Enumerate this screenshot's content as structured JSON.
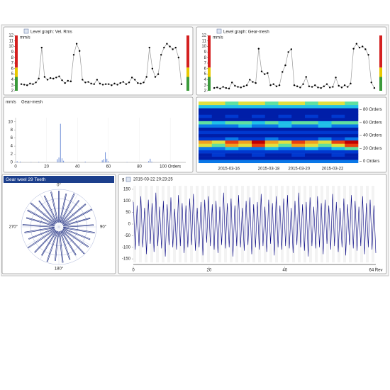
{
  "chart_data": [
    {
      "type": "line",
      "title": "Level graph: Vel. Rms",
      "y_label": "mm/s",
      "color": "#999999",
      "marker_color": "#000000",
      "values": [
        3.2,
        3.1,
        3.0,
        3.3,
        3.2,
        3.5,
        4.2,
        9.8,
        4.5,
        4.0,
        4.3,
        4.2,
        4.4,
        4.6,
        3.9,
        3.4,
        3.8,
        3.7,
        8.5,
        10.5,
        9.2,
        4.0,
        3.5,
        3.6,
        3.3,
        3.2,
        4.0,
        3.3,
        3.1,
        3.2,
        3.2,
        3.0,
        3.3,
        3.1,
        3.4,
        3.6,
        3.2,
        3.5,
        4.4,
        4.0,
        3.4,
        3.3,
        3.5,
        4.5,
        9.8,
        6.0,
        4.5,
        5.0,
        8.5,
        9.8,
        10.5,
        10.0,
        9.5,
        9.8,
        8.0,
        3.2
      ],
      "ylim": [
        2,
        12
      ],
      "yticks": [
        2,
        3,
        4,
        5,
        6,
        7,
        8,
        9,
        10,
        11,
        12
      ],
      "alarm_bands": [
        {
          "from": 2,
          "to": 4.5,
          "color": "#3a9a3a"
        },
        {
          "from": 4.5,
          "to": 6.2,
          "color": "#e8c800"
        },
        {
          "from": 6.2,
          "to": 12,
          "color": "#d42020"
        }
      ]
    },
    {
      "type": "line",
      "title": "Level graph: Gear-mesh",
      "y_label": "mm/s",
      "color": "#999999",
      "marker_color": "#000000",
      "values": [
        2.5,
        2.6,
        2.4,
        2.7,
        2.5,
        2.4,
        3.5,
        2.9,
        2.7,
        2.6,
        2.8,
        3.0,
        4.0,
        3.6,
        3.4,
        9.6,
        5.5,
        5.0,
        5.2,
        3.0,
        3.2,
        2.8,
        3.0,
        5.4,
        6.6,
        9.0,
        9.5,
        3.0,
        2.8,
        2.6,
        3.2,
        4.5,
        2.8,
        2.7,
        3.0,
        2.6,
        2.5,
        2.8,
        3.2,
        2.6,
        2.7,
        4.4,
        2.9,
        2.6,
        3.0,
        2.7,
        3.3,
        9.6,
        10.5,
        9.8,
        10.0,
        9.5,
        8.5,
        3.5,
        2.5
      ],
      "ylim": [
        2,
        12
      ],
      "yticks": [
        2,
        3,
        4,
        5,
        6,
        7,
        8,
        9,
        10,
        11,
        12
      ],
      "alarm_bands": [
        {
          "from": 2,
          "to": 4.5,
          "color": "#3a9a3a"
        },
        {
          "from": 4.5,
          "to": 6.2,
          "color": "#e8c800"
        },
        {
          "from": 6.2,
          "to": 12,
          "color": "#d42020"
        }
      ]
    },
    {
      "type": "bar",
      "title": "Gear-mesh",
      "y_label": "mm/s",
      "color": "#6f8fd8",
      "x": [
        1,
        3,
        10,
        15,
        27,
        28,
        29,
        30,
        31,
        45,
        56,
        57,
        58,
        59,
        60,
        72,
        86,
        87,
        88
      ],
      "values": [
        0.3,
        0.2,
        0.1,
        0.15,
        0.8,
        1.2,
        9.5,
        1.0,
        0.4,
        0.2,
        0.5,
        0.8,
        2.5,
        0.9,
        0.3,
        0.1,
        0.3,
        0.9,
        0.2
      ],
      "xlim": [
        0,
        110
      ],
      "xticks": [
        0,
        20,
        40,
        60,
        80,
        {
          "value": 100,
          "label": "100 Orders"
        }
      ],
      "ylim": [
        0,
        11
      ],
      "yticks": [
        0,
        2,
        4,
        6,
        8,
        10
      ]
    },
    {
      "type": "heatmap",
      "y": [
        0,
        5,
        10,
        15,
        20,
        25,
        30,
        35,
        40,
        45,
        50,
        55,
        60,
        65,
        70,
        75,
        80,
        85,
        90
      ],
      "z": [
        [
          3,
          3,
          3,
          3,
          3,
          3,
          3,
          3,
          3,
          3,
          3,
          3
        ],
        [
          1,
          1,
          1,
          1,
          1,
          1,
          1,
          1,
          1,
          1,
          1,
          1
        ],
        [
          1,
          2,
          1,
          1,
          2,
          1,
          1,
          2,
          1,
          1,
          2,
          1
        ],
        [
          2,
          2,
          2,
          2,
          2,
          2,
          2,
          2,
          2,
          2,
          2,
          2
        ],
        [
          3,
          3,
          4,
          3,
          3,
          4,
          3,
          3,
          4,
          3,
          4,
          5
        ],
        [
          6,
          5,
          7,
          6,
          8,
          6,
          5,
          7,
          6,
          5,
          6,
          8
        ],
        [
          7,
          6,
          8,
          7,
          9,
          7,
          6,
          8,
          7,
          6,
          8,
          9
        ],
        [
          2,
          2,
          3,
          2,
          2,
          3,
          2,
          2,
          2,
          3,
          2,
          3
        ],
        [
          1,
          1,
          1,
          1,
          1,
          1,
          1,
          1,
          1,
          1,
          1,
          1
        ],
        [
          2,
          2,
          2,
          2,
          2,
          2,
          2,
          2,
          2,
          2,
          2,
          2
        ],
        [
          1,
          1,
          1,
          1,
          1,
          1,
          1,
          1,
          1,
          1,
          1,
          1
        ],
        [
          3,
          3,
          3,
          4,
          3,
          3,
          4,
          3,
          3,
          4,
          3,
          3
        ],
        [
          5,
          4,
          5,
          5,
          4,
          5,
          4,
          5,
          5,
          4,
          5,
          5
        ],
        [
          1,
          1,
          1,
          1,
          1,
          1,
          1,
          1,
          1,
          1,
          1,
          1
        ],
        [
          2,
          1,
          2,
          1,
          2,
          1,
          2,
          1,
          2,
          1,
          2,
          1
        ],
        [
          1,
          1,
          1,
          1,
          1,
          1,
          1,
          1,
          1,
          1,
          1,
          1
        ],
        [
          1,
          1,
          1,
          1,
          1,
          1,
          1,
          1,
          1,
          1,
          1,
          1
        ],
        [
          4,
          4,
          4,
          4,
          4,
          4,
          4,
          4,
          4,
          4,
          4,
          4
        ],
        [
          6,
          6,
          5,
          6,
          6,
          5,
          6,
          6,
          5,
          6,
          6,
          5
        ]
      ],
      "colors": [
        "#000a6e",
        "#001ea8",
        "#0038d0",
        "#0a78e8",
        "#20c0e8",
        "#60e0a0",
        "#e0e040",
        "#f0a020",
        "#e84010",
        "#c00000"
      ],
      "ylim": [
        -5,
        95
      ],
      "yticks": [
        {
          "value": 0,
          "label": "0 Orders"
        },
        {
          "value": 20,
          "label": "20 Orders"
        },
        {
          "value": 40,
          "label": "40 Orders"
        },
        {
          "value": 60,
          "label": "60 Orders"
        },
        {
          "value": 80,
          "label": "80 Orders"
        }
      ],
      "xticks": [
        "2015-03-16",
        "2015-03-18",
        "2015-03-20",
        "2015-03-22"
      ]
    },
    {
      "type": "polar",
      "title": "Gear weel 29 Teeth",
      "color": "#1a2a80",
      "values": [
        0.95,
        0.9,
        0.97,
        0.88,
        0.93,
        0.99,
        0.86,
        0.92,
        0.96,
        0.89,
        0.94,
        0.98,
        0.87,
        0.91,
        0.95,
        0.9,
        0.97,
        0.88,
        0.93,
        0.99,
        0.86,
        0.92,
        0.96,
        0.89,
        0.94,
        0.98,
        0.87,
        0.91,
        0.95
      ],
      "rlim": [
        0,
        1
      ],
      "rticks": [
        0.25,
        0.5,
        0.75,
        1
      ],
      "angle_labels": [
        "0°",
        "90°",
        "180°",
        "270°"
      ]
    },
    {
      "type": "waveform",
      "y_label": "g",
      "timestamp": "2015-03-22 20:23:25",
      "color": "#000080",
      "values": [
        95,
        -110,
        80,
        -95,
        120,
        -100,
        70,
        -130,
        105,
        -85,
        90,
        -120,
        135,
        -95,
        75,
        -105,
        100,
        -140,
        85,
        -90,
        115,
        -100,
        65,
        -110,
        125,
        -95,
        90,
        -125,
        80,
        -100,
        110,
        -90,
        130,
        -115,
        70,
        -100,
        95,
        -135,
        105,
        -80,
        120,
        -95,
        85,
        -110,
        100,
        -125,
        75,
        -90,
        135,
        -105,
        90,
        -100,
        110,
        -140,
        80,
        -95,
        125,
        -100,
        70,
        -115,
        100,
        -90,
        115,
        -130,
        85,
        -100,
        95,
        -110,
        130,
        -95,
        75,
        -120,
        105,
        -85,
        90,
        -135,
        120,
        -100,
        80,
        -110,
        110,
        -95,
        125,
        -105,
        70,
        -125,
        100,
        -90,
        135,
        -100,
        85,
        -115,
        95,
        -140,
        115,
        -95,
        75,
        -105,
        120,
        -100,
        90,
        -130,
        105,
        -85,
        80,
        -110,
        130,
        -95,
        95,
        -120,
        70,
        -100,
        110,
        -135,
        85,
        -90,
        125,
        -105,
        100,
        -115,
        75,
        -95,
        120,
        -130,
        90,
        -100,
        105,
        -110,
        80,
        -125
      ],
      "xlim": [
        0,
        64
      ],
      "xticks": [
        0,
        20,
        40,
        {
          "value": 64,
          "label": "64 Rev"
        }
      ],
      "ylim": [
        -165,
        165
      ],
      "yticks": [
        -150,
        -100,
        -50,
        0,
        50,
        100,
        150
      ]
    }
  ]
}
